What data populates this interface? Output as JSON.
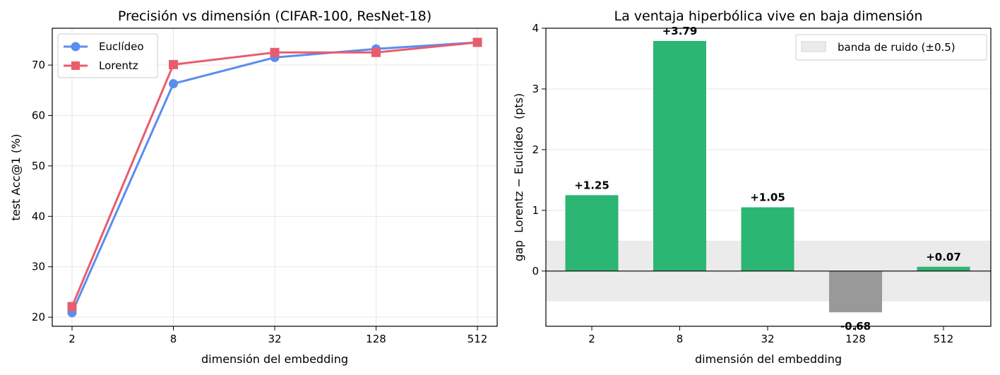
{
  "chart_data": [
    {
      "type": "line",
      "title": "Precisión vs dimensión (CIFAR-100, ResNet-18)",
      "xlabel": "dimensión del embedding",
      "ylabel": "test Acc@1 (%)",
      "categories": [
        "2",
        "8",
        "32",
        "128",
        "512"
      ],
      "x_scale": "log2",
      "ylim": [
        18.2,
        77.3
      ],
      "yticks": [
        "20",
        "30",
        "40",
        "50",
        "60",
        "70"
      ],
      "grid": true,
      "legend_position": "top-left",
      "series": [
        {
          "name": "Euclídeo",
          "values": [
            20.9,
            66.3,
            71.5,
            73.2,
            74.5
          ],
          "color": "#5b8def",
          "marker": "circle"
        },
        {
          "name": "Lorentz",
          "values": [
            22.1,
            70.1,
            72.5,
            72.5,
            74.5
          ],
          "color": "#e85d6e",
          "marker": "square"
        }
      ]
    },
    {
      "type": "bar",
      "title": "La ventaja hiperbólica vive en baja dimensión",
      "xlabel": "dimensión del embedding",
      "ylabel": "gap  Lorentz − Euclídeo  (pts)",
      "categories": [
        "2",
        "8",
        "32",
        "128",
        "512"
      ],
      "values": [
        1.25,
        3.79,
        1.05,
        -0.68,
        0.07
      ],
      "labels": [
        "+1.25",
        "+3.79",
        "+1.05",
        "-0.68",
        "+0.07"
      ],
      "ylim": [
        -0.91,
        4.0
      ],
      "yticks": [
        "0",
        "1",
        "2",
        "3",
        "4"
      ],
      "grid": true,
      "legend_position": "top-right",
      "noise_band": {
        "label": "banda de ruido (±0.5)",
        "range": [
          -0.5,
          0.5
        ],
        "color": "#d3d3d3"
      },
      "positive_color": "#2bb673",
      "negative_color": "#999999"
    }
  ]
}
